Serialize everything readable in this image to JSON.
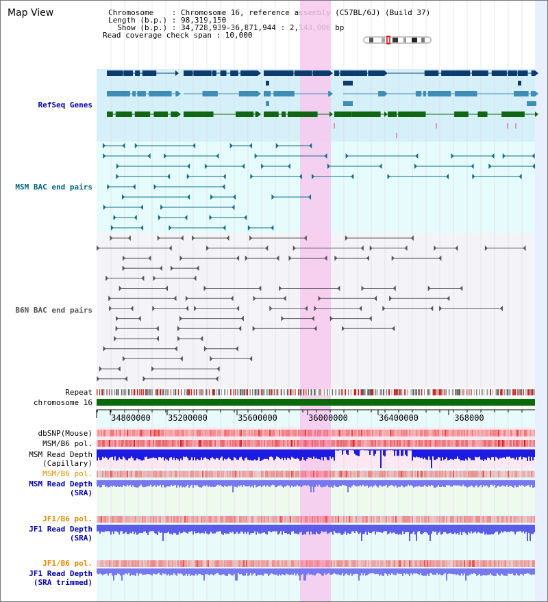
{
  "header": {
    "title": "Map View",
    "lines": [
      "Chromosome    : Chromosome 16, reference assembly (C57BL/6J) (Build 37)",
      "Length (b.p.) : 98,319,150",
      "  Show (b.p.) : 34,728,939-36,871,944 : 2,143,006 bp",
      "Read coverage check span : 10,000"
    ]
  },
  "tracks": {
    "refseq": {
      "label": "RefSeq Genes",
      "color": "#0000aa"
    },
    "msm_bac": {
      "label": "MSM BAC end pairs",
      "color": "#006677"
    },
    "b6n_bac": {
      "label": "B6N BAC end pairs",
      "color": "#555555"
    },
    "repeat": {
      "label": "Repeat"
    },
    "chromosome": {
      "label": "chromosome 16"
    },
    "dbsnp": {
      "label": "dbSNP(Mouse)"
    },
    "msm_b6_pol_1": {
      "label": "MSM/B6 pol."
    },
    "msm_depth_cap": {
      "label": "MSM Read Depth",
      "label2": "(Capillary)"
    },
    "msm_b6_pol_2": {
      "label": "MSM/B6 pol.",
      "color": "#e08a00"
    },
    "msm_depth_sra": {
      "label": "MSM Read Depth",
      "label2": "(SRA)",
      "color": "#0000aa"
    },
    "jf1_b6_pol_1": {
      "label": "JF1/B6 pol.",
      "color": "#e08a00"
    },
    "jf1_depth_sra": {
      "label": "JF1 Read Depth",
      "label2": "(SRA)",
      "color": "#0000aa"
    },
    "jf1_b6_pol_2": {
      "label": "JF1/B6 pol.",
      "color": "#e08a00"
    },
    "jf1_depth_trim": {
      "label": "JF1 Read Depth",
      "label2": "(SRA trimmed)",
      "color": "#0000aa"
    }
  },
  "axis": {
    "ticks": [
      "34800000",
      "35200000",
      "35600000",
      "36000000",
      "36400000",
      "368000"
    ]
  },
  "colors": {
    "highlight": "#f7c9ee",
    "refseq_dark": "#0d3b6e",
    "refseq_mid": "#3f8db5",
    "refseq_green": "#116611",
    "msm_line": "#0d6c8a",
    "b6n_line": "#555555",
    "chrom_bar": "#0a6a0a",
    "depth_blue": "#1c1ce0",
    "depth_light": "#7777ee"
  }
}
